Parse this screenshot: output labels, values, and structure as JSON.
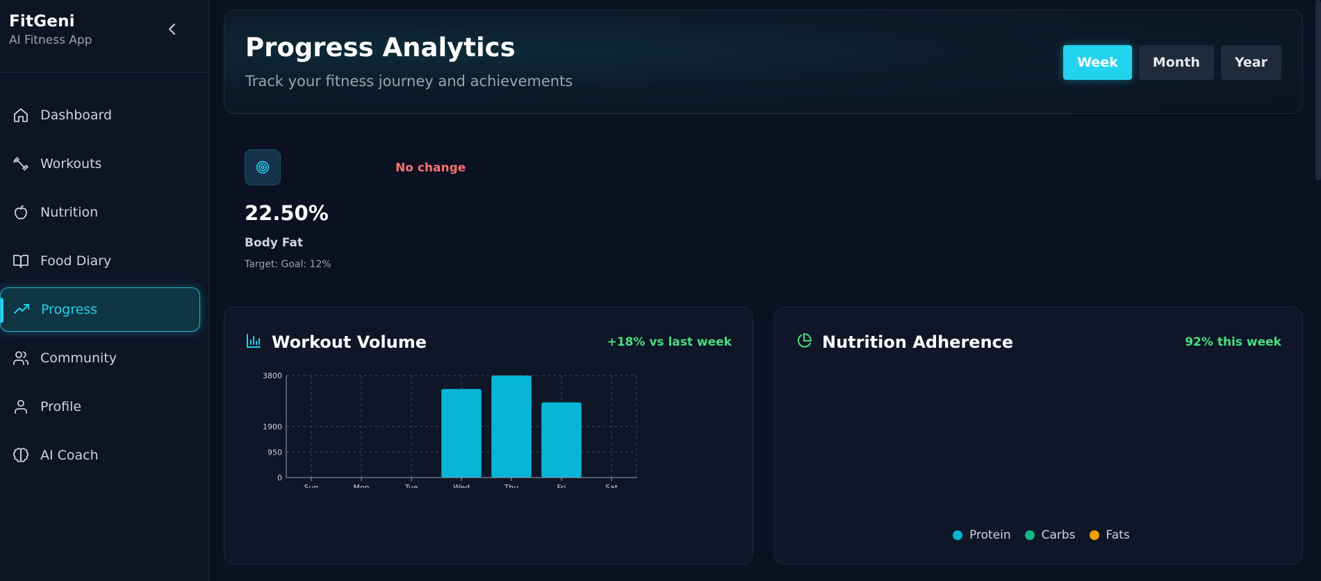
{
  "brand": {
    "name": "FitGeni",
    "subtitle": "AI Fitness App"
  },
  "sidebar": {
    "items": [
      {
        "label": "Dashboard",
        "icon": "home-icon"
      },
      {
        "label": "Workouts",
        "icon": "dumbbell-icon"
      },
      {
        "label": "Nutrition",
        "icon": "apple-icon"
      },
      {
        "label": "Food Diary",
        "icon": "book-icon"
      },
      {
        "label": "Progress",
        "icon": "trending-up-icon",
        "active": true
      },
      {
        "label": "Community",
        "icon": "users-icon"
      },
      {
        "label": "Profile",
        "icon": "user-icon"
      },
      {
        "label": "AI Coach",
        "icon": "brain-icon"
      }
    ]
  },
  "header": {
    "title": "Progress Analytics",
    "subtitle": "Track your fitness journey and achievements",
    "ranges": [
      "Week",
      "Month",
      "Year"
    ],
    "active_range": "Week"
  },
  "stat": {
    "icon": "target-icon",
    "change": "No change",
    "value": "22.50%",
    "label": "Body Fat",
    "target": "Target: Goal: 12%"
  },
  "workout_panel": {
    "title": "Workout Volume",
    "metric": "+18% vs last week"
  },
  "nutrition_panel": {
    "title": "Nutrition Adherence",
    "metric": "92% this week",
    "legend": [
      {
        "label": "Protein",
        "color": "#06b6d4"
      },
      {
        "label": "Carbs",
        "color": "#10b981"
      },
      {
        "label": "Fats",
        "color": "#f59e0b"
      }
    ]
  },
  "colors": {
    "accent": "#22d3ee",
    "bar": "#06b6d4",
    "positive": "#4ade80",
    "negative": "#f87171"
  },
  "chart_data": {
    "type": "bar",
    "categories": [
      "Sun",
      "Mon",
      "Tue",
      "Wed",
      "Thu",
      "Fri",
      "Sat"
    ],
    "values": [
      0,
      0,
      0,
      3300,
      3800,
      2800,
      0
    ],
    "yticks": [
      0,
      950,
      1900,
      3800
    ],
    "ylim": [
      0,
      3800
    ],
    "grid": true
  }
}
